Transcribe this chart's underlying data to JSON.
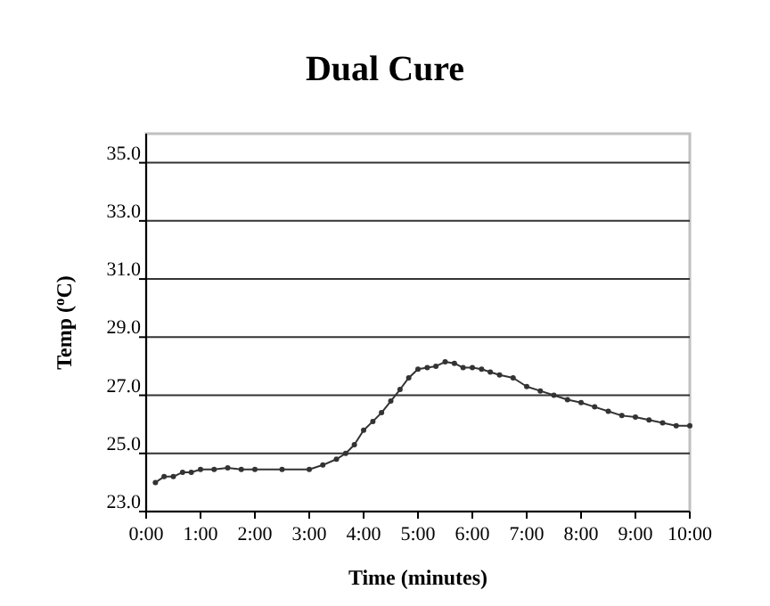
{
  "chart_data": {
    "type": "line",
    "title": "Dual Cure",
    "xlabel": "Time (minutes)",
    "ylabel": "Temp ($^{o}$C)",
    "x": [
      0.17,
      0.33,
      0.5,
      0.67,
      0.83,
      1.0,
      1.25,
      1.5,
      1.75,
      2.0,
      2.5,
      3.0,
      3.25,
      3.5,
      3.67,
      3.83,
      4.0,
      4.17,
      4.33,
      4.5,
      4.67,
      4.83,
      5.0,
      5.17,
      5.33,
      5.5,
      5.67,
      5.83,
      6.0,
      6.17,
      6.33,
      6.5,
      6.75,
      7.0,
      7.25,
      7.5,
      7.75,
      8.0,
      8.25,
      8.5,
      8.75,
      9.0,
      9.25,
      9.5,
      9.75,
      10.0
    ],
    "series": [
      {
        "color": "#333333",
        "values": [
          24.0,
          24.2,
          24.2,
          24.35,
          24.35,
          24.45,
          24.45,
          24.5,
          24.45,
          24.45,
          24.45,
          24.45,
          24.6,
          24.8,
          25.0,
          25.3,
          25.8,
          26.1,
          26.4,
          26.8,
          27.2,
          27.6,
          27.9,
          27.95,
          28.0,
          28.15,
          28.1,
          27.95,
          27.95,
          27.9,
          27.8,
          27.7,
          27.6,
          27.3,
          27.15,
          27.0,
          26.85,
          26.75,
          26.6,
          26.45,
          26.3,
          26.25,
          26.15,
          26.05,
          25.95,
          25.95
        ]
      }
    ],
    "xlim": [
      0,
      10
    ],
    "xticks": [
      {
        "value": 0,
        "label": "0:00"
      },
      {
        "value": 1,
        "label": "1:00"
      },
      {
        "value": 2,
        "label": "2:00"
      },
      {
        "value": 3,
        "label": "3:00"
      },
      {
        "value": 4,
        "label": "4:00"
      },
      {
        "value": 5,
        "label": "5:00"
      },
      {
        "value": 6,
        "label": "6:00"
      },
      {
        "value": 7,
        "label": "7:00"
      },
      {
        "value": 8,
        "label": "8:00"
      },
      {
        "value": 9,
        "label": "9:00"
      },
      {
        "value": 10,
        "label": "10:00"
      }
    ],
    "ylim": [
      23,
      36
    ],
    "yticks": [
      {
        "value": 23,
        "label": "23.0"
      },
      {
        "value": 25,
        "label": "25.0"
      },
      {
        "value": 27,
        "label": "27.0"
      },
      {
        "value": 29,
        "label": "29.0"
      },
      {
        "value": 31,
        "label": "31.0"
      },
      {
        "value": 33,
        "label": "33.0"
      },
      {
        "value": 35,
        "label": "35.0"
      }
    ],
    "grid": "y",
    "marker": "circle",
    "line_style": "solid"
  }
}
